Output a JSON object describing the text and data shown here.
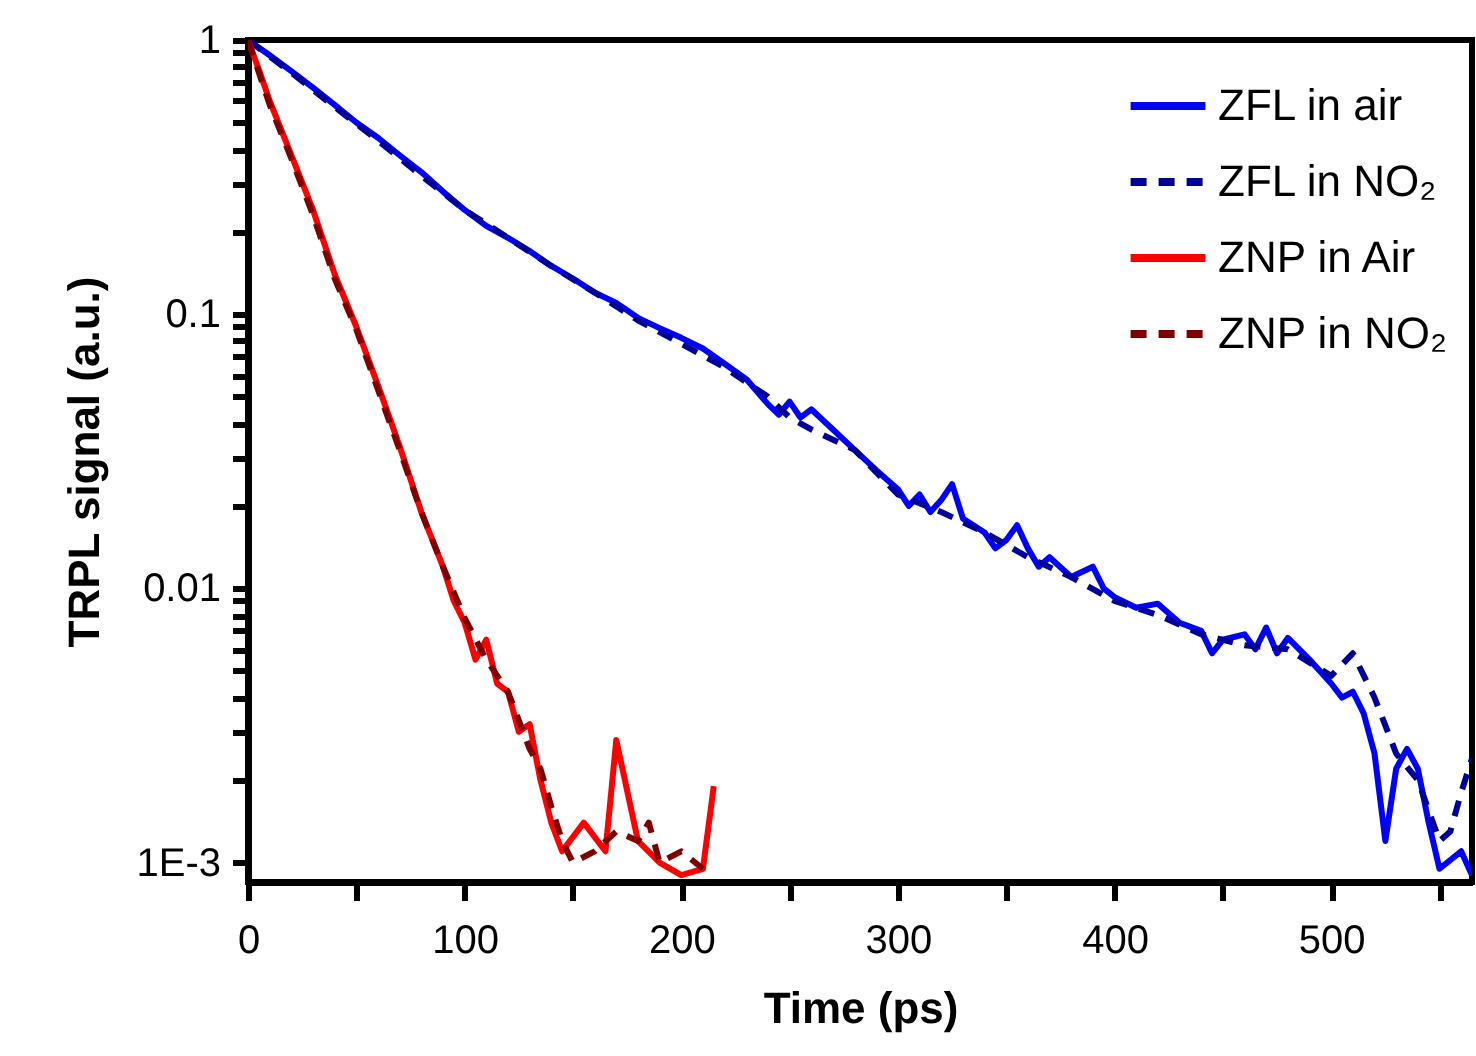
{
  "chart_data": {
    "type": "line",
    "xlabel": "Time (ps)",
    "ylabel": "TRPL signal (a.u.)",
    "log": "y",
    "grid": false,
    "legend": "top right",
    "xlim": [
      0,
      565
    ],
    "ylim": [
      0.00085,
      1
    ],
    "xticks": [
      0,
      {
        "value": 50,
        "label": null
      },
      100,
      {
        "value": 150,
        "label": null
      },
      200,
      {
        "value": 250,
        "label": null
      },
      300,
      {
        "value": 350,
        "label": null
      },
      400,
      {
        "value": 450,
        "label": null
      },
      500,
      {
        "value": 550,
        "label": null
      }
    ],
    "yticks": [
      {
        "value": 0.001,
        "label": "1E-3"
      },
      {
        "value": 0.002,
        "label": null
      },
      {
        "value": 0.003,
        "label": null
      },
      {
        "value": 0.004,
        "label": null
      },
      {
        "value": 0.005,
        "label": null
      },
      {
        "value": 0.006,
        "label": null
      },
      {
        "value": 0.007,
        "label": null
      },
      {
        "value": 0.008,
        "label": null
      },
      {
        "value": 0.009,
        "label": null
      },
      0.01,
      {
        "value": 0.02,
        "label": null
      },
      {
        "value": 0.03,
        "label": null
      },
      {
        "value": 0.04,
        "label": null
      },
      {
        "value": 0.05,
        "label": null
      },
      {
        "value": 0.06,
        "label": null
      },
      {
        "value": 0.07,
        "label": null
      },
      {
        "value": 0.08,
        "label": null
      },
      {
        "value": 0.09,
        "label": null
      },
      0.1,
      {
        "value": 0.2,
        "label": null
      },
      {
        "value": 0.3,
        "label": null
      },
      {
        "value": 0.4,
        "label": null
      },
      {
        "value": 0.5,
        "label": null
      },
      {
        "value": 0.6,
        "label": null
      },
      {
        "value": 0.7,
        "label": null
      },
      {
        "value": 0.8,
        "label": null
      },
      {
        "value": 0.9,
        "label": null
      },
      1
    ],
    "series": [
      {
        "name": "ZFL in  air",
        "color": "#0000ff",
        "line_style": "solid",
        "x": [
          0,
          10,
          20,
          30,
          40,
          50,
          60,
          70,
          80,
          90,
          100,
          110,
          120,
          130,
          140,
          150,
          160,
          170,
          180,
          190,
          200,
          210,
          220,
          230,
          240,
          245,
          250,
          255,
          260,
          270,
          280,
          290,
          300,
          305,
          310,
          315,
          320,
          325,
          330,
          340,
          345,
          350,
          355,
          360,
          365,
          370,
          380,
          390,
          395,
          400,
          410,
          420,
          430,
          440,
          445,
          450,
          460,
          465,
          470,
          475,
          480,
          490,
          500,
          505,
          510,
          515,
          520,
          525,
          530,
          535,
          540,
          545,
          550,
          560,
          565
        ],
        "values": [
          1,
          0.88,
          0.77,
          0.67,
          0.58,
          0.5,
          0.44,
          0.38,
          0.33,
          0.28,
          0.24,
          0.21,
          0.19,
          0.17,
          0.15,
          0.135,
          0.12,
          0.11,
          0.097,
          0.089,
          0.082,
          0.075,
          0.066,
          0.058,
          0.047,
          0.043,
          0.048,
          0.042,
          0.045,
          0.038,
          0.032,
          0.027,
          0.023,
          0.02,
          0.022,
          0.019,
          0.021,
          0.024,
          0.018,
          0.016,
          0.014,
          0.015,
          0.017,
          0.014,
          0.012,
          0.013,
          0.011,
          0.012,
          0.01,
          0.0093,
          0.0085,
          0.0088,
          0.0075,
          0.007,
          0.0058,
          0.0065,
          0.0068,
          0.006,
          0.0072,
          0.0058,
          0.0066,
          0.0055,
          0.0045,
          0.004,
          0.0042,
          0.0035,
          0.0025,
          0.0012,
          0.0022,
          0.0026,
          0.0022,
          0.0014,
          0.00095,
          0.0011,
          0.0009
        ]
      },
      {
        "name": "ZFL in NO₂",
        "color": "#000099",
        "line_style": "dashed",
        "x": [
          0,
          20,
          40,
          60,
          80,
          100,
          120,
          140,
          160,
          180,
          200,
          220,
          240,
          250,
          260,
          280,
          300,
          320,
          340,
          360,
          380,
          400,
          420,
          440,
          460,
          480,
          500,
          510,
          520,
          530,
          540,
          550,
          555,
          560,
          565
        ],
        "values": [
          1,
          0.76,
          0.57,
          0.43,
          0.32,
          0.24,
          0.19,
          0.15,
          0.12,
          0.095,
          0.078,
          0.064,
          0.05,
          0.042,
          0.038,
          0.032,
          0.022,
          0.019,
          0.016,
          0.013,
          0.011,
          0.009,
          0.008,
          0.0068,
          0.0062,
          0.006,
          0.0048,
          0.0058,
          0.004,
          0.0025,
          0.002,
          0.0012,
          0.0013,
          0.0018,
          0.0024
        ]
      },
      {
        "name": "ZNP in Air",
        "color": "#ff0000",
        "line_style": "solid",
        "x": [
          0,
          5,
          10,
          20,
          30,
          40,
          50,
          60,
          70,
          80,
          90,
          95,
          100,
          105,
          110,
          115,
          120,
          125,
          130,
          135,
          140,
          145,
          155,
          165,
          170,
          180,
          190,
          200,
          210,
          215
        ],
        "values": [
          1,
          0.78,
          0.6,
          0.38,
          0.24,
          0.14,
          0.09,
          0.055,
          0.033,
          0.019,
          0.012,
          0.009,
          0.0075,
          0.0055,
          0.0065,
          0.0045,
          0.0042,
          0.003,
          0.0032,
          0.002,
          0.0014,
          0.0011,
          0.0014,
          0.0011,
          0.0028,
          0.0012,
          0.001,
          0.0009,
          0.00095,
          0.0019
        ]
      },
      {
        "name": "ZNP in NO₂",
        "color": "#800000",
        "line_style": "dashed",
        "x": [
          0,
          10,
          20,
          30,
          40,
          50,
          60,
          70,
          80,
          90,
          100,
          110,
          120,
          130,
          135,
          140,
          145,
          150,
          160,
          170,
          180,
          185,
          190,
          200,
          210
        ],
        "values": [
          1,
          0.58,
          0.37,
          0.23,
          0.135,
          0.088,
          0.053,
          0.032,
          0.019,
          0.012,
          0.0078,
          0.0055,
          0.0042,
          0.0026,
          0.0022,
          0.0016,
          0.0012,
          0.001,
          0.0011,
          0.0013,
          0.0012,
          0.0014,
          0.001,
          0.0011,
          0.00095
        ]
      }
    ]
  }
}
